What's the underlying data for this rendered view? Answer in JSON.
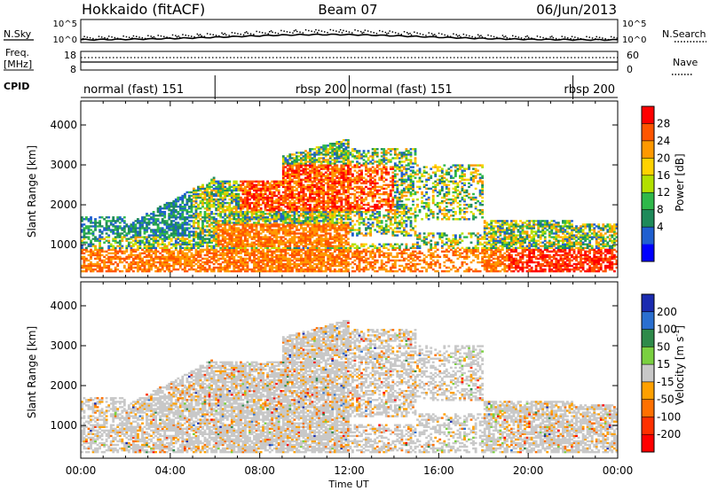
{
  "header": {
    "station": "Hokkaido (fitACF)",
    "beam": "Beam 07",
    "date": "06/Jun/2013"
  },
  "side_labels": {
    "nsky": "N.Sky",
    "nsearch": "N.Search",
    "freq_line1": "Freq.",
    "freq_line2": "[MHz]",
    "nave": "Nave",
    "cpid": "CPID"
  },
  "noise_axis": {
    "left_ticks": [
      "10^5",
      "10^0"
    ],
    "right_ticks": [
      "10^5",
      "10^0"
    ]
  },
  "freq_axis": {
    "left_ticks": [
      "18",
      "8"
    ],
    "right_ticks": [
      "60",
      "0"
    ]
  },
  "cpid_segments": [
    {
      "label": "normal (fast) 151",
      "start_hour": 0,
      "end_hour": 6
    },
    {
      "label": "rbsp 200",
      "start_hour": 6,
      "end_hour": 12
    },
    {
      "label": "normal (fast) 151",
      "start_hour": 12,
      "end_hour": 22
    },
    {
      "label": "rbsp 200",
      "start_hour": 22,
      "end_hour": 24
    }
  ],
  "chart_data": [
    {
      "type": "heatmap",
      "quantity": "Power",
      "ylabel": "Slant Range [km]",
      "ylim": [
        180,
        4600
      ],
      "yticks": [
        1000,
        2000,
        3000,
        4000
      ],
      "xlim": [
        0,
        24
      ],
      "colorbar": {
        "label": "Power [dB]",
        "tick_labels": [
          "28",
          "24",
          "20",
          "16",
          "12",
          "8",
          "4"
        ],
        "colors": [
          "#ff0000",
          "#ff5500",
          "#ff9900",
          "#ffd200",
          "#b2e000",
          "#2fb84a",
          "#1e8a5a",
          "#1f5fd0",
          "#0000ff"
        ]
      }
    },
    {
      "type": "heatmap",
      "quantity": "Velocity",
      "ylabel": "Slant Range [km]",
      "ylim": [
        180,
        4600
      ],
      "yticks": [
        1000,
        2000,
        3000,
        4000
      ],
      "xlim": [
        0,
        24
      ],
      "xlabel": "Time UT",
      "xticks": [
        "00:00",
        "04:00",
        "08:00",
        "12:00",
        "16:00",
        "20:00",
        "00:00"
      ],
      "colorbar": {
        "label_main": "Velocity [",
        "label_unit": "m s",
        "label_exp": "-1",
        "label_close": "]",
        "tick_labels": [
          "200",
          "100",
          "50",
          "15",
          "-15",
          "-50",
          "-100",
          "-200"
        ],
        "colors": [
          "#1a2bb0",
          "#2a6fd0",
          "#2e8a4a",
          "#7ad040",
          "#c8c8c8",
          "#ffa000",
          "#ff7000",
          "#ff3000",
          "#ff0000"
        ]
      }
    }
  ]
}
